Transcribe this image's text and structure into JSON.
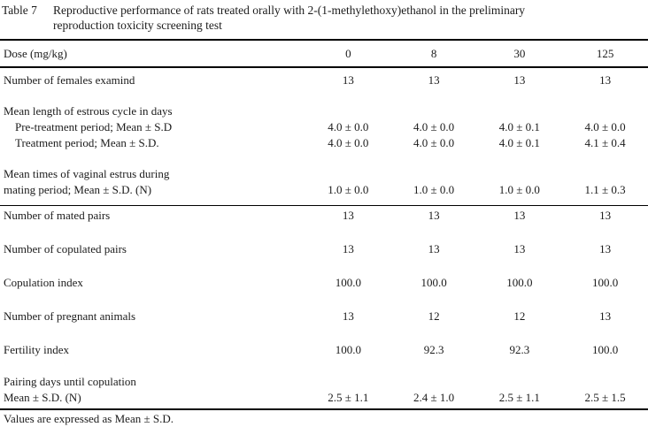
{
  "title": {
    "label": "Table 7",
    "line1": "Reproductive performance of rats treated orally with 2-(1-methylethoxy)ethanol in the preliminary",
    "line2": "reproduction toxicity screening test"
  },
  "table": {
    "dose_label": "Dose (mg/kg)",
    "dose_values": [
      "0",
      "8",
      "30",
      "125"
    ],
    "rows": [
      {
        "label": "Number of females examind",
        "values": [
          "13",
          "13",
          "13",
          "13"
        ]
      },
      {
        "label": "Mean length of estrous cycle in days",
        "values": [
          "",
          "",
          "",
          ""
        ]
      },
      {
        "label": "Pre-treatment period; Mean ± S.D",
        "values": [
          "4.0 ± 0.0",
          "4.0 ± 0.0",
          "4.0 ± 0.1",
          "4.0 ± 0.0"
        ]
      },
      {
        "label": "Treatment period; Mean ± S.D.",
        "values": [
          "4.0 ± 0.0",
          "4.0 ± 0.0",
          "4.0 ± 0.1",
          "4.1 ± 0.4"
        ]
      },
      {
        "label": "Mean times of vaginal estrus during",
        "values": [
          "",
          "",
          "",
          ""
        ]
      },
      {
        "label": "mating period; Mean ± S.D. (N)",
        "values": [
          "1.0 ± 0.0",
          "1.0 ± 0.0",
          "1.0 ± 0.0",
          "1.1 ± 0.3"
        ]
      },
      {
        "label": "Number of mated pairs",
        "values": [
          "13",
          "13",
          "13",
          "13"
        ]
      },
      {
        "label": "Number of copulated pairs",
        "values": [
          "13",
          "13",
          "13",
          "13"
        ]
      },
      {
        "label": "Copulation index",
        "values": [
          "100.0",
          "100.0",
          "100.0",
          "100.0"
        ]
      },
      {
        "label": "Number of pregnant animals",
        "values": [
          "13",
          "12",
          "12",
          "13"
        ]
      },
      {
        "label": "Fertility index",
        "values": [
          "100.0",
          "92.3",
          "92.3",
          "100.0"
        ]
      },
      {
        "label": "Pairing days until copulation",
        "values": [
          "",
          "",
          "",
          ""
        ]
      },
      {
        "label": "Mean ± S.D. (N)",
        "values": [
          "2.5 ± 1.1",
          "2.4 ± 1.0",
          "2.5 ± 1.1",
          "2.5 ± 1.5"
        ]
      }
    ]
  },
  "footnote": "Values are expressed as Mean ± S.D."
}
